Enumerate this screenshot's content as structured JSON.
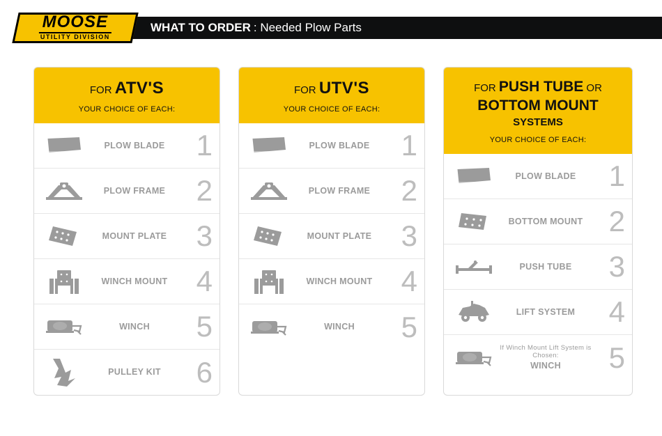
{
  "colors": {
    "brand": "#f7c200",
    "dark": "#0e0f10",
    "grey": "#9b9b9b",
    "numGrey": "#bdbdbd",
    "border": "#d9d9d9",
    "divider": "#e6e6e6",
    "bg": "#ffffff"
  },
  "logo": {
    "main": "MOOSE",
    "sub": "UTILITY DIVISION"
  },
  "banner": {
    "bold": "WHAT TO ORDER",
    "rest": ": Needed Plow Parts"
  },
  "cards": [
    {
      "titlePre": "FOR ",
      "titleBold": "ATV'S",
      "sub": "YOUR CHOICE OF EACH:",
      "rows": [
        {
          "icon": "blade",
          "label": "PLOW BLADE",
          "num": "1"
        },
        {
          "icon": "frame",
          "label": "PLOW FRAME",
          "num": "2"
        },
        {
          "icon": "plate",
          "label": "MOUNT PLATE",
          "num": "3"
        },
        {
          "icon": "winchmount",
          "label": "WINCH MOUNT",
          "num": "4"
        },
        {
          "icon": "winch",
          "label": "WINCH",
          "num": "5"
        },
        {
          "icon": "pulley",
          "label": "PULLEY KIT",
          "num": "6"
        }
      ]
    },
    {
      "titlePre": "FOR ",
      "titleBold": "UTV'S",
      "sub": "YOUR CHOICE OF EACH:",
      "rows": [
        {
          "icon": "blade",
          "label": "PLOW BLADE",
          "num": "1"
        },
        {
          "icon": "frame",
          "label": "PLOW FRAME",
          "num": "2"
        },
        {
          "icon": "plate",
          "label": "MOUNT PLATE",
          "num": "3"
        },
        {
          "icon": "winchmount",
          "label": "WINCH MOUNT",
          "num": "4"
        },
        {
          "icon": "winch",
          "label": "WINCH",
          "num": "5"
        }
      ]
    },
    {
      "title2": "FOR <b>PUSH TUBE</b> OR<br><b>BOTTOM MOUNT</b><br><b style='font-size:15px'>SYSTEMS</b>",
      "sub": "YOUR CHOICE OF EACH:",
      "rows": [
        {
          "icon": "blade",
          "label": "PLOW BLADE",
          "num": "1"
        },
        {
          "icon": "bottommount",
          "label": "BOTTOM MOUNT",
          "num": "2"
        },
        {
          "icon": "pushtube",
          "label": "PUSH TUBE",
          "num": "3"
        },
        {
          "icon": "atvveh",
          "label": "LIFT SYSTEM",
          "num": "4"
        },
        {
          "icon": "winch",
          "hint": "If Winch Mount Lift System is Chosen:",
          "label": "WINCH",
          "num": "5"
        }
      ]
    }
  ]
}
